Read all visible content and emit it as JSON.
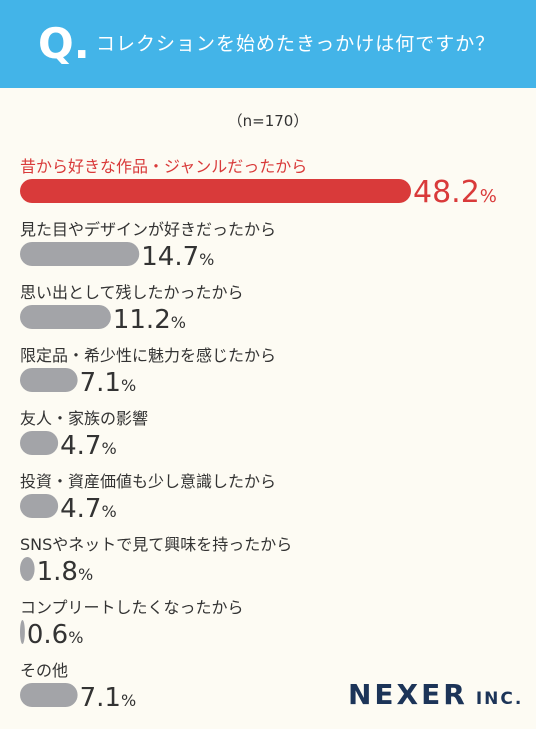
{
  "header": {
    "q": "Q.",
    "question": "コレクションを始めたきっかけは何ですか？"
  },
  "sample": "（n=170）",
  "logo": {
    "name": "NEXER",
    "suffix": "INC."
  },
  "colors": {
    "header_bg": "#43b4e8",
    "highlight": "#d93a3a",
    "bar": "#a3a4a8",
    "text": "#333333",
    "bg": "#fdfbf3"
  },
  "chart_data": {
    "type": "bar",
    "orientation": "horizontal",
    "unit": "%",
    "categories": [
      "昔から好きな作品・ジャンルだったから",
      "見た目やデザインが好きだったから",
      "思い出として残したかったから",
      "限定品・希少性に魅力を感じたから",
      "友人・家族の影響",
      "投資・資産価値も少し意識したから",
      "SNSやネットで見て興味を持ったから",
      "コンプリートしたくなったから",
      "その他"
    ],
    "values": [
      48.2,
      14.7,
      11.2,
      7.1,
      4.7,
      4.7,
      1.8,
      0.6,
      7.1
    ],
    "value_labels": [
      "48.2",
      "14.7",
      "11.2",
      "7.1",
      "4.7",
      "4.7",
      "1.8",
      "0.6",
      "7.1"
    ],
    "highlight_index": 0
  }
}
